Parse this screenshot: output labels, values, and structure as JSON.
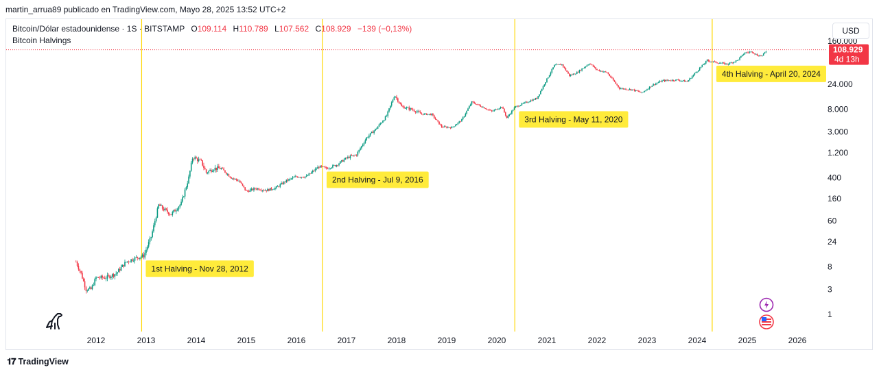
{
  "header": {
    "published": "martin_arrua89 publicado en TradingView.com, Mayo 28, 2025 13:52 UTC+2"
  },
  "legend": {
    "symbol": "Bitcoin/Dólar estadounidense · 1S · BITSTAMP",
    "o_label": "O",
    "o_value": "109.114",
    "h_label": "H",
    "h_value": "110.789",
    "l_label": "L",
    "l_value": "107.562",
    "c_label": "C",
    "c_value": "108.929",
    "change": "−139 (−0,13%)",
    "indicator": "Bitcoin Halvings"
  },
  "controls": {
    "currency": "USD"
  },
  "price_label": {
    "price": "108.929",
    "countdown": "4d 13h"
  },
  "footer": {
    "brand": "TradingView"
  },
  "colors": {
    "up": "#089981",
    "down": "#f23645",
    "halving": "#ffd700",
    "label_bg": "#ffeb3b"
  },
  "chart_data": {
    "type": "candlestick",
    "scale": "log",
    "x_ticks": [
      "2012",
      "2013",
      "2014",
      "2015",
      "2016",
      "2017",
      "2018",
      "2019",
      "2020",
      "2021",
      "2022",
      "2023",
      "2024",
      "2025",
      "2026"
    ],
    "y_ticks": [
      {
        "value": 1,
        "label": "1"
      },
      {
        "value": 3,
        "label": "3"
      },
      {
        "value": 8,
        "label": "8"
      },
      {
        "value": 24,
        "label": "24"
      },
      {
        "value": 60,
        "label": "60"
      },
      {
        "value": 160,
        "label": "160"
      },
      {
        "value": 400,
        "label": "400"
      },
      {
        "value": 1200,
        "label": "1.200"
      },
      {
        "value": 3000,
        "label": "3.000"
      },
      {
        "value": 8000,
        "label": "8.000"
      },
      {
        "value": 24000,
        "label": "24.000"
      },
      {
        "value": 160000,
        "label": "160.000"
      }
    ],
    "last_price": 108929,
    "halvings": [
      {
        "year": 2012.91,
        "label": "1st Halving - Nov 28, 2012"
      },
      {
        "year": 2016.52,
        "label": "2nd Halving - Jul 9, 2016"
      },
      {
        "year": 2020.36,
        "label": "3rd Halving - May 11, 2020"
      },
      {
        "year": 2024.3,
        "label": "4th Halving - April 20, 2024"
      }
    ],
    "price_path": [
      [
        2011.6,
        10
      ],
      [
        2011.7,
        6
      ],
      [
        2011.8,
        3
      ],
      [
        2011.9,
        3
      ],
      [
        2012.0,
        5
      ],
      [
        2012.2,
        5
      ],
      [
        2012.4,
        6
      ],
      [
        2012.6,
        10
      ],
      [
        2012.8,
        12
      ],
      [
        2012.95,
        13
      ],
      [
        2013.1,
        30
      ],
      [
        2013.25,
        120
      ],
      [
        2013.35,
        100
      ],
      [
        2013.5,
        80
      ],
      [
        2013.7,
        130
      ],
      [
        2013.85,
        400
      ],
      [
        2013.93,
        1000
      ],
      [
        2014.1,
        800
      ],
      [
        2014.2,
        500
      ],
      [
        2014.35,
        600
      ],
      [
        2014.5,
        600
      ],
      [
        2014.7,
        400
      ],
      [
        2014.85,
        350
      ],
      [
        2015.0,
        220
      ],
      [
        2015.2,
        250
      ],
      [
        2015.4,
        230
      ],
      [
        2015.6,
        260
      ],
      [
        2015.8,
        350
      ],
      [
        2016.0,
        420
      ],
      [
        2016.2,
        420
      ],
      [
        2016.45,
        650
      ],
      [
        2016.6,
        600
      ],
      [
        2016.8,
        700
      ],
      [
        2017.0,
        950
      ],
      [
        2017.2,
        1100
      ],
      [
        2017.4,
        2300
      ],
      [
        2017.6,
        3500
      ],
      [
        2017.8,
        6000
      ],
      [
        2017.96,
        15000
      ],
      [
        2018.1,
        9000
      ],
      [
        2018.3,
        8000
      ],
      [
        2018.5,
        6500
      ],
      [
        2018.7,
        6400
      ],
      [
        2018.9,
        3700
      ],
      [
        2019.1,
        3600
      ],
      [
        2019.3,
        5000
      ],
      [
        2019.5,
        11000
      ],
      [
        2019.7,
        9000
      ],
      [
        2019.9,
        7300
      ],
      [
        2020.1,
        9000
      ],
      [
        2020.2,
        5500
      ],
      [
        2020.36,
        8800
      ],
      [
        2020.6,
        11000
      ],
      [
        2020.8,
        13000
      ],
      [
        2021.0,
        30000
      ],
      [
        2021.15,
        55000
      ],
      [
        2021.3,
        57000
      ],
      [
        2021.45,
        35000
      ],
      [
        2021.6,
        40000
      ],
      [
        2021.85,
        60000
      ],
      [
        2022.0,
        45000
      ],
      [
        2022.2,
        40000
      ],
      [
        2022.45,
        20000
      ],
      [
        2022.7,
        19000
      ],
      [
        2022.9,
        16500
      ],
      [
        2023.1,
        23000
      ],
      [
        2023.3,
        28000
      ],
      [
        2023.6,
        29000
      ],
      [
        2023.8,
        27000
      ],
      [
        2024.0,
        43000
      ],
      [
        2024.2,
        68000
      ],
      [
        2024.4,
        62000
      ],
      [
        2024.6,
        58000
      ],
      [
        2024.8,
        68000
      ],
      [
        2024.95,
        95000
      ],
      [
        2025.1,
        100000
      ],
      [
        2025.2,
        85000
      ],
      [
        2025.3,
        84000
      ],
      [
        2025.4,
        108929
      ]
    ]
  }
}
